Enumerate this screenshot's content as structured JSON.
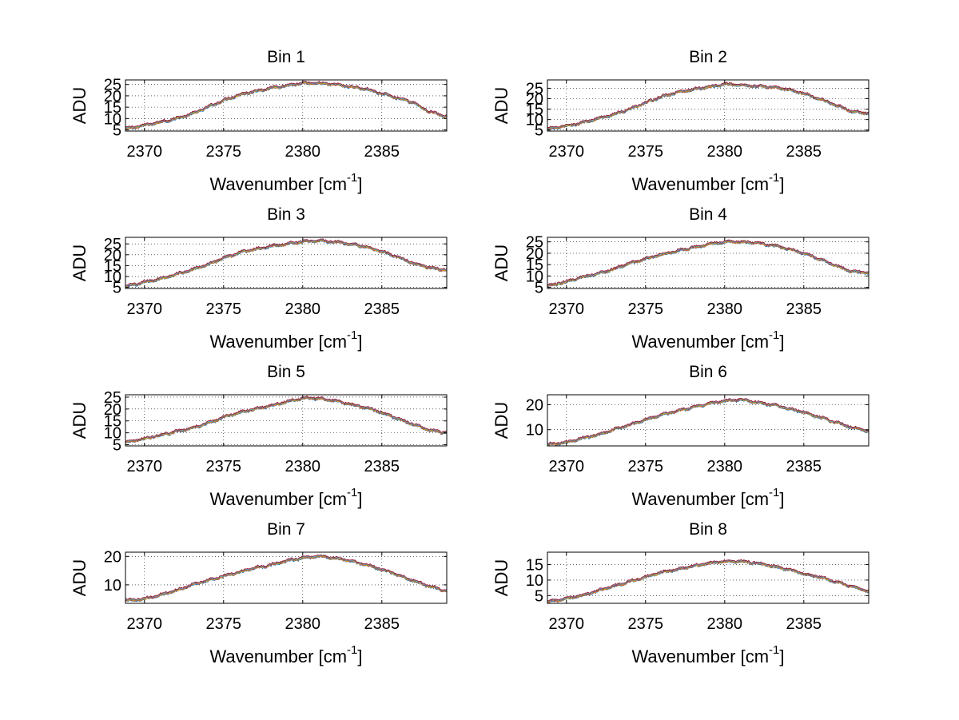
{
  "chart_data": [
    {
      "type": "line",
      "title": "Bin 1",
      "xlabel": "Wavenumber [cm",
      "xlabel_sup": "-1",
      "xlabel_end": "]",
      "ylabel": "ADU",
      "xlim": [
        2368.8,
        2389.1
      ],
      "ylim": [
        4.5,
        27
      ],
      "xticks": [
        2370,
        2375,
        2380,
        2385
      ],
      "yticks": [
        5,
        10,
        15,
        20,
        25
      ],
      "grid": true,
      "x": [
        2368.8,
        2370,
        2371,
        2372,
        2373,
        2374,
        2375,
        2376,
        2377,
        2378,
        2379,
        2380,
        2381,
        2382,
        2383,
        2384,
        2385,
        2386,
        2387,
        2388,
        2389
      ],
      "values": [
        5.5,
        7,
        8.5,
        10,
        12,
        15,
        18,
        20.5,
        22,
        23.5,
        24.5,
        25.5,
        25.5,
        25,
        24,
        23,
        21,
        19,
        17,
        13,
        11
      ]
    },
    {
      "type": "line",
      "title": "Bin 2",
      "xlabel": "Wavenumber [cm",
      "xlabel_sup": "-1",
      "xlabel_end": "]",
      "ylabel": "ADU",
      "xlim": [
        2368.8,
        2389.1
      ],
      "ylim": [
        4.5,
        29
      ],
      "xticks": [
        2370,
        2375,
        2380,
        2385
      ],
      "yticks": [
        5,
        10,
        15,
        20,
        25
      ],
      "grid": true,
      "x": [
        2368.8,
        2370,
        2371,
        2372,
        2373,
        2374,
        2375,
        2376,
        2377,
        2378,
        2379,
        2380,
        2381,
        2382,
        2383,
        2384,
        2385,
        2386,
        2387,
        2388,
        2389
      ],
      "values": [
        5.5,
        7,
        8.5,
        10.5,
        12.5,
        15,
        18,
        21,
        23,
        24.5,
        25.5,
        27,
        26.5,
        26,
        25.5,
        24.5,
        22.5,
        20,
        17,
        14,
        13
      ]
    },
    {
      "type": "line",
      "title": "Bin 3",
      "xlabel": "Wavenumber [cm",
      "xlabel_sup": "-1",
      "xlabel_end": "]",
      "ylabel": "ADU",
      "xlim": [
        2368.8,
        2389.1
      ],
      "ylim": [
        4.5,
        28
      ],
      "xticks": [
        2370,
        2375,
        2380,
        2385
      ],
      "yticks": [
        5,
        10,
        15,
        20,
        25
      ],
      "grid": true,
      "x": [
        2368.8,
        2370,
        2371,
        2372,
        2373,
        2374,
        2375,
        2376,
        2377,
        2378,
        2379,
        2380,
        2381,
        2382,
        2383,
        2384,
        2385,
        2386,
        2387,
        2388,
        2389
      ],
      "values": [
        5.5,
        7.5,
        9,
        11,
        13,
        15.5,
        18.5,
        21,
        22.5,
        24,
        25,
        26,
        26.5,
        26,
        25,
        23.5,
        21.5,
        19,
        16,
        14,
        13
      ]
    },
    {
      "type": "line",
      "title": "Bin 4",
      "xlabel": "Wavenumber [cm",
      "xlabel_sup": "-1",
      "xlabel_end": "]",
      "ylabel": "ADU",
      "xlim": [
        2368.8,
        2389.1
      ],
      "ylim": [
        4.5,
        27
      ],
      "xticks": [
        2370,
        2375,
        2380,
        2385
      ],
      "yticks": [
        5,
        10,
        15,
        20,
        25
      ],
      "grid": true,
      "x": [
        2368.8,
        2370,
        2371,
        2372,
        2373,
        2374,
        2375,
        2376,
        2377,
        2378,
        2379,
        2380,
        2381,
        2382,
        2383,
        2384,
        2385,
        2386,
        2387,
        2388,
        2389
      ],
      "values": [
        5.5,
        7.5,
        9.5,
        11,
        13,
        15.5,
        17.5,
        19.5,
        21,
        22.5,
        24,
        25,
        25,
        24.5,
        23.5,
        22,
        20,
        17.5,
        14.5,
        12,
        11.5
      ]
    },
    {
      "type": "line",
      "title": "Bin 5",
      "xlabel": "Wavenumber [cm",
      "xlabel_sup": "-1",
      "xlabel_end": "]",
      "ylabel": "ADU",
      "xlim": [
        2368.8,
        2389.1
      ],
      "ylim": [
        4.5,
        26
      ],
      "xticks": [
        2370,
        2375,
        2380,
        2385
      ],
      "yticks": [
        5,
        10,
        15,
        20,
        25
      ],
      "grid": true,
      "x": [
        2368.8,
        2370,
        2371,
        2372,
        2373,
        2374,
        2375,
        2376,
        2377,
        2378,
        2379,
        2380,
        2381,
        2382,
        2383,
        2384,
        2385,
        2386,
        2387,
        2388,
        2389
      ],
      "values": [
        6,
        7.5,
        9,
        10.5,
        12,
        14,
        16.5,
        18.5,
        20,
        21.5,
        23,
        24.5,
        24.5,
        23.5,
        22,
        20.5,
        18.5,
        16,
        13.5,
        11,
        10
      ]
    },
    {
      "type": "line",
      "title": "Bin 6",
      "xlabel": "Wavenumber [cm",
      "xlabel_sup": "-1",
      "xlabel_end": "]",
      "ylabel": "ADU",
      "xlim": [
        2368.8,
        2389.1
      ],
      "ylim": [
        3.5,
        24
      ],
      "xticks": [
        2370,
        2375,
        2380,
        2385
      ],
      "yticks": [
        10,
        20
      ],
      "grid": true,
      "x": [
        2368.8,
        2370,
        2371,
        2372,
        2373,
        2374,
        2375,
        2376,
        2377,
        2378,
        2379,
        2380,
        2381,
        2382,
        2383,
        2384,
        2385,
        2386,
        2387,
        2388,
        2389
      ],
      "values": [
        4,
        5,
        6.5,
        8,
        10,
        12,
        14,
        16,
        17.5,
        19,
        20.5,
        21.5,
        22,
        21,
        20,
        18.5,
        17,
        15,
        13,
        11,
        9.5
      ]
    },
    {
      "type": "line",
      "title": "Bin 7",
      "xlabel": "Wavenumber [cm",
      "xlabel_sup": "-1",
      "xlabel_end": "]",
      "ylabel": "ADU",
      "xlim": [
        2368.8,
        2389.1
      ],
      "ylim": [
        3.5,
        21.5
      ],
      "xticks": [
        2370,
        2375,
        2380,
        2385
      ],
      "yticks": [
        10,
        20
      ],
      "grid": true,
      "x": [
        2368.8,
        2370,
        2371,
        2372,
        2373,
        2374,
        2375,
        2376,
        2377,
        2378,
        2379,
        2380,
        2381,
        2382,
        2383,
        2384,
        2385,
        2386,
        2387,
        2388,
        2389
      ],
      "values": [
        4.5,
        5,
        6.5,
        8,
        10,
        11.5,
        13,
        14.5,
        16,
        17,
        18.5,
        19.5,
        20,
        19.5,
        18.5,
        17,
        15.5,
        13.5,
        11.5,
        9.5,
        8
      ]
    },
    {
      "type": "line",
      "title": "Bin 8",
      "xlabel": "Wavenumber [cm",
      "xlabel_sup": "-1",
      "xlabel_end": "]",
      "ylabel": "ADU",
      "xlim": [
        2368.8,
        2389.1
      ],
      "ylim": [
        2.5,
        19
      ],
      "xticks": [
        2370,
        2375,
        2380,
        2385
      ],
      "yticks": [
        5,
        10,
        15
      ],
      "grid": true,
      "x": [
        2368.8,
        2370,
        2371,
        2372,
        2373,
        2374,
        2375,
        2376,
        2377,
        2378,
        2379,
        2380,
        2381,
        2382,
        2383,
        2384,
        2385,
        2386,
        2387,
        2388,
        2389
      ],
      "values": [
        3,
        4,
        5,
        6.5,
        8,
        9.5,
        11,
        12.5,
        13.5,
        14.5,
        15.5,
        16,
        16,
        15.5,
        14.5,
        13.5,
        12,
        11,
        9.5,
        8,
        6.5
      ]
    }
  ],
  "series_colors": [
    "#0072bd",
    "#d95319",
    "#edb120",
    "#7e2f8e",
    "#77ac30",
    "#4dbeee",
    "#a2142f"
  ]
}
